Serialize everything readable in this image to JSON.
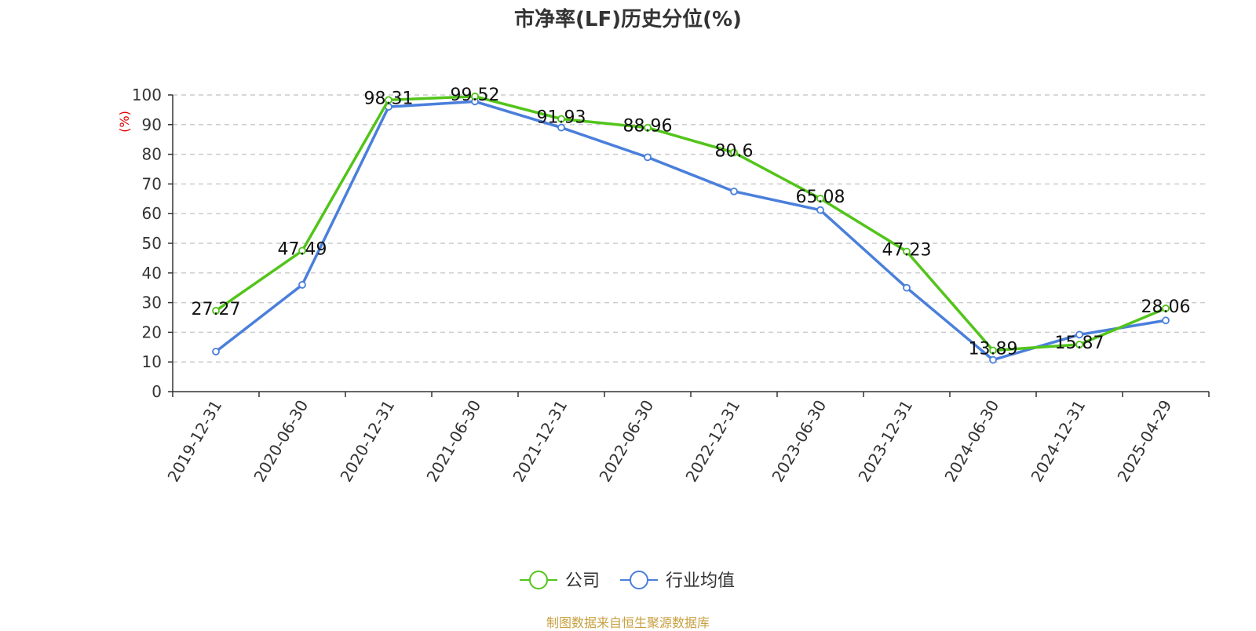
{
  "source_note": "制图数据来自恒生聚源数据库",
  "chart_data": {
    "type": "line",
    "title": "市净率(LF)历史分位(%)",
    "xlabel": "",
    "ylabel": "(%)",
    "categories": [
      "2019-12-31",
      "2020-06-30",
      "2020-12-31",
      "2021-06-30",
      "2021-12-31",
      "2022-06-30",
      "2022-12-31",
      "2023-06-30",
      "2023-12-31",
      "2024-06-30",
      "2024-12-31",
      "2025-04-29"
    ],
    "ylim": [
      0,
      100
    ],
    "yticks": [
      "0",
      "10",
      "20",
      "30",
      "40",
      "50",
      "60",
      "70",
      "80",
      "90",
      "100"
    ],
    "grid": true,
    "legend_position": "bottom-center",
    "series": [
      {
        "name": "公司",
        "color": "#52c41a",
        "values": [
          27.27,
          47.49,
          98.31,
          99.52,
          91.93,
          88.96,
          80.6,
          65.08,
          47.23,
          13.89,
          15.87,
          28.06
        ],
        "labels": [
          "27.27",
          "47.49",
          "98.31",
          "99.52",
          "91.93",
          "88.96",
          "80.6",
          "65.08",
          "47.23",
          "13.89",
          "15.87",
          "28.06"
        ]
      },
      {
        "name": "行业均值",
        "color": "#4a7fdb",
        "values": [
          13.5,
          36,
          96,
          97.8,
          89,
          79,
          67.5,
          61.2,
          35,
          10.7,
          19.2,
          24
        ]
      }
    ]
  }
}
